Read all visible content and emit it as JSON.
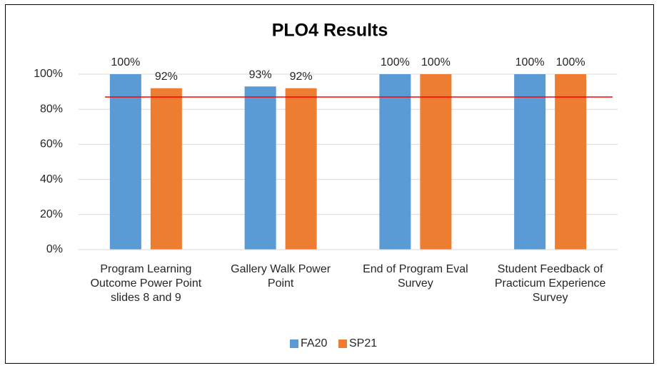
{
  "chart_data": {
    "type": "bar",
    "title": "PLO4 Results",
    "categories": [
      "Program Learning Outcome Power Point slides 8 and 9",
      "Gallery Walk Power Point",
      "End of Program Eval Survey",
      "Student Feedback of Practicum Experience Survey"
    ],
    "series": [
      {
        "name": "FA20",
        "color": "#5b9bd5",
        "values": [
          100,
          93,
          100,
          100
        ],
        "value_labels": [
          "100%",
          "93%",
          "100%",
          "100%"
        ]
      },
      {
        "name": "SP21",
        "color": "#ed7d31",
        "values": [
          92,
          92,
          100,
          100
        ],
        "value_labels": [
          "92%",
          "92%",
          "100%",
          "100%"
        ]
      }
    ],
    "target": {
      "value": 87,
      "color": "#ff0000"
    },
    "ylim": [
      0,
      100
    ],
    "yticks": [
      {
        "value": 0,
        "label": "0%"
      },
      {
        "value": 20,
        "label": "20%"
      },
      {
        "value": 40,
        "label": "40%"
      },
      {
        "value": 60,
        "label": "60%"
      },
      {
        "value": 80,
        "label": "80%"
      },
      {
        "value": 100,
        "label": "100%"
      }
    ],
    "grid": true,
    "legend": "bottom"
  }
}
